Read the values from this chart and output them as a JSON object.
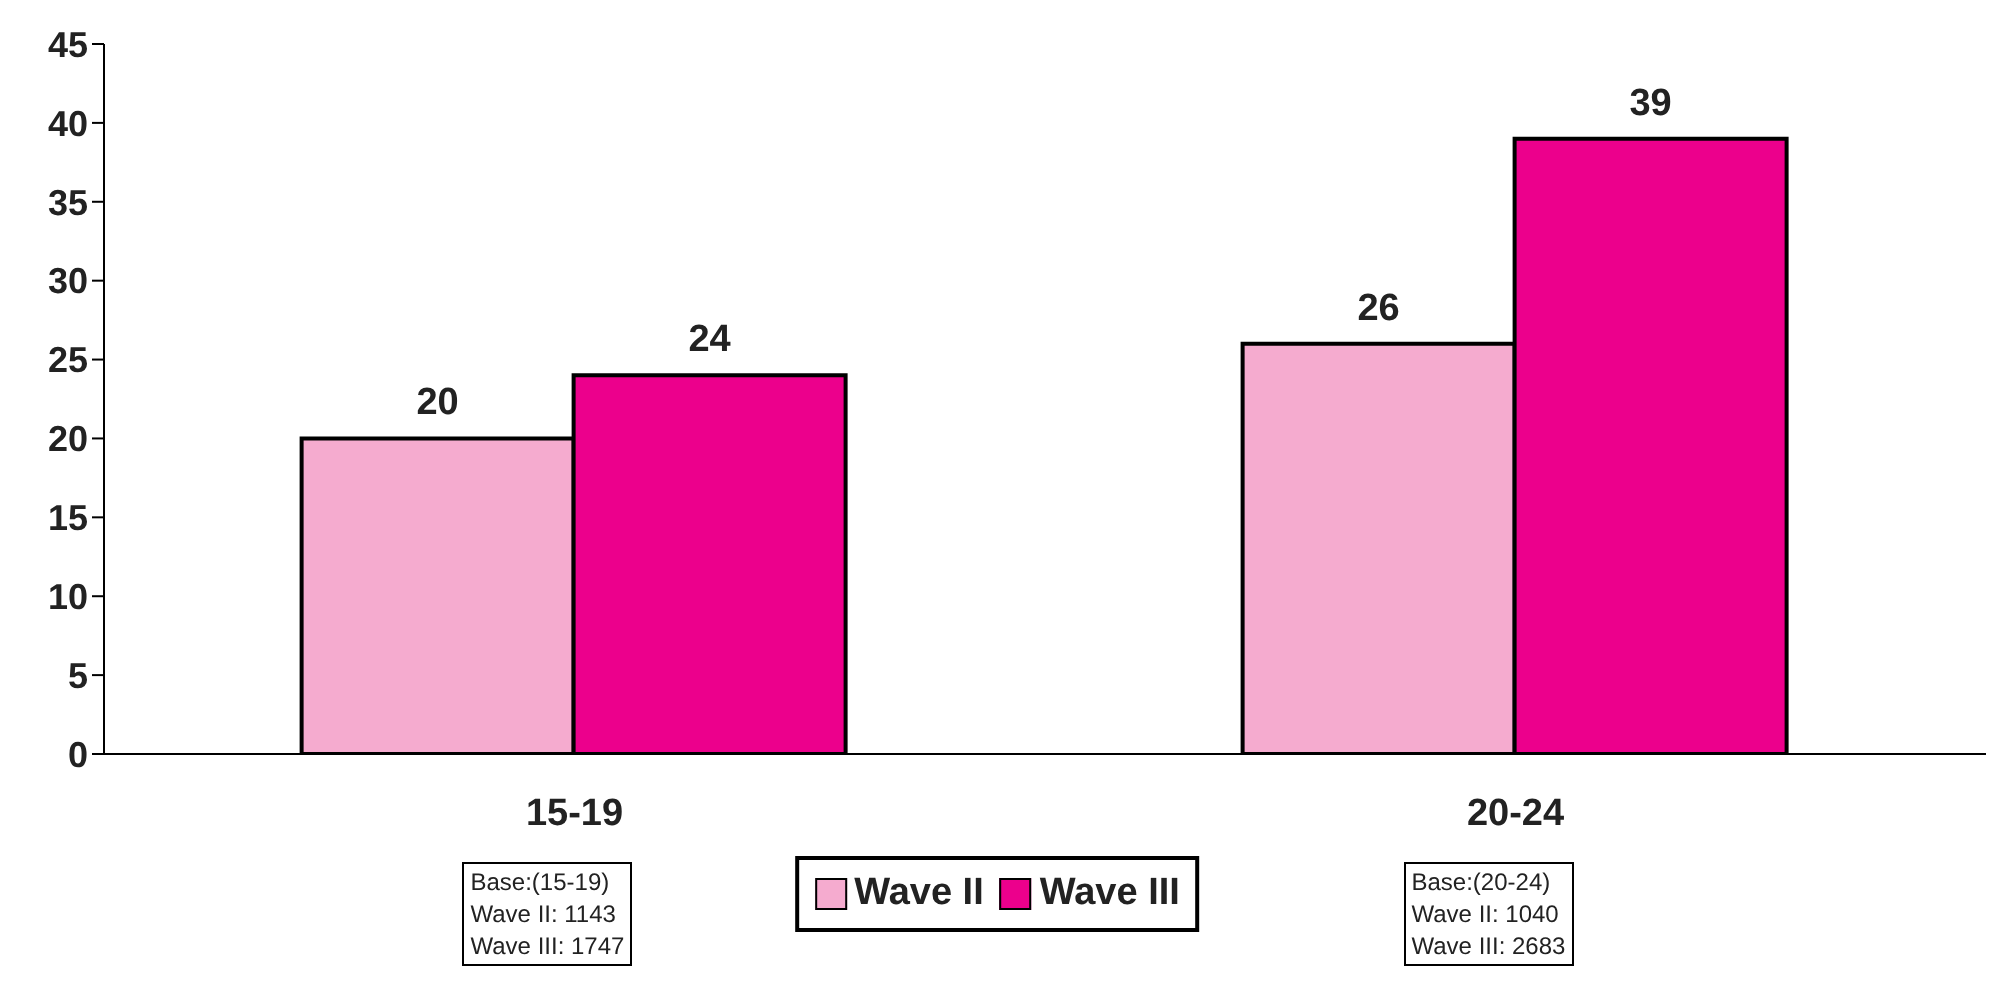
{
  "chart_data": {
    "type": "bar",
    "categories": [
      "15-19",
      "20-24"
    ],
    "series": [
      {
        "name": "Wave II",
        "color": "#f5abcf",
        "values": [
          20,
          26
        ]
      },
      {
        "name": "Wave III",
        "color": "#ec008c",
        "values": [
          24,
          39
        ]
      }
    ],
    "ylim": [
      0,
      45
    ],
    "yticks": [
      0,
      5,
      10,
      15,
      20,
      25,
      30,
      35,
      40,
      45
    ],
    "grid": false,
    "legend": "bottom",
    "data_labels": true,
    "annotations": [
      "Base:(15-19)\nWave II: 1143\nWave III: 1747",
      "Base:(20-24)\nWave II: 1040\nWave III: 2683"
    ]
  }
}
